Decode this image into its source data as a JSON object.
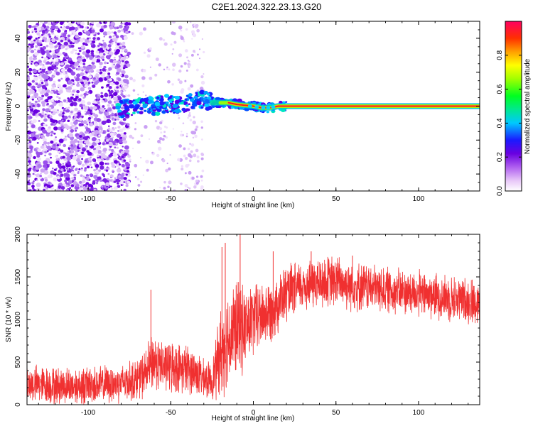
{
  "title": "C2E1.2024.322.23.13.G20",
  "colors": {
    "snr_line": "#f03030",
    "ridge": "#ee2222"
  },
  "chart_data": [
    {
      "type": "heatmap",
      "xlabel": "Height of straight line (km)",
      "ylabel": "Frequency (Hz)",
      "xlim": [
        -137,
        137
      ],
      "ylim": [
        -50,
        50
      ],
      "xticks": [
        -100,
        -50,
        0,
        50,
        100
      ],
      "yticks": [
        -40,
        -20,
        0,
        20,
        40
      ],
      "grid": false,
      "ridge": {
        "x": [
          -82,
          -75,
          -70,
          -65,
          -60,
          -55,
          -50,
          -45,
          -40,
          -35,
          -30,
          -25,
          -20,
          -15,
          -10,
          -5,
          0,
          5,
          10,
          15,
          20,
          40,
          60,
          80,
          100,
          120,
          137
        ],
        "y": [
          -2,
          -1,
          0,
          0.5,
          0,
          1,
          1.5,
          0.5,
          2,
          3,
          4,
          2,
          2,
          2,
          1,
          0.5,
          0,
          -1,
          -1,
          0,
          0,
          0,
          0,
          0,
          0,
          0,
          0
        ]
      },
      "colorbar": {
        "label": "Normalized spectral amplitude",
        "range": [
          0,
          1
        ],
        "ticks": [
          0.0,
          0.2,
          0.4,
          0.6,
          0.8
        ],
        "tick_labels": [
          "0.0",
          "0.2",
          "0.4",
          "0.6",
          "0.8"
        ],
        "colormap": "rainbow (white-purple-blue-cyan-green-yellow-orange-red)"
      }
    },
    {
      "type": "line",
      "xlabel": "Height of straight line (km)",
      "ylabel": "SNR (10 * v/v)",
      "xlim": [
        -137,
        137
      ],
      "ylim": [
        0,
        2000
      ],
      "xticks": [
        -100,
        -50,
        0,
        50,
        100
      ],
      "yticks": [
        0,
        500,
        1000,
        1500,
        2000
      ],
      "grid": false,
      "series": [
        {
          "envelope_x": [
            -137,
            -120,
            -100,
            -85,
            -75,
            -70,
            -65,
            -60,
            -55,
            -50,
            -45,
            -40,
            -35,
            -30,
            -25,
            -20,
            -15,
            -10,
            -5,
            0,
            5,
            10,
            20,
            30,
            40,
            50,
            60,
            80,
            100,
            120,
            137
          ],
          "envelope_mean": [
            250,
            220,
            230,
            240,
            280,
            300,
            380,
            520,
            450,
            450,
            430,
            420,
            380,
            300,
            280,
            600,
            800,
            900,
            900,
            1000,
            1050,
            1100,
            1300,
            1400,
            1430,
            1450,
            1400,
            1350,
            1300,
            1250,
            1200
          ],
          "envelope_spread": [
            230,
            230,
            230,
            230,
            240,
            250,
            300,
            360,
            300,
            320,
            300,
            300,
            280,
            230,
            220,
            550,
            600,
            600,
            500,
            450,
            400,
            380,
            350,
            300,
            320,
            320,
            300,
            280,
            280,
            280,
            280
          ],
          "spikes": [
            {
              "x": -62,
              "y": 1350
            },
            {
              "x": -19,
              "y": 1850
            },
            {
              "x": -17,
              "y": 1900
            },
            {
              "x": -8,
              "y": 2000
            },
            {
              "x": 12,
              "y": 1800
            },
            {
              "x": 35,
              "y": 1800
            },
            {
              "x": 60,
              "y": 1750
            }
          ]
        }
      ]
    }
  ]
}
